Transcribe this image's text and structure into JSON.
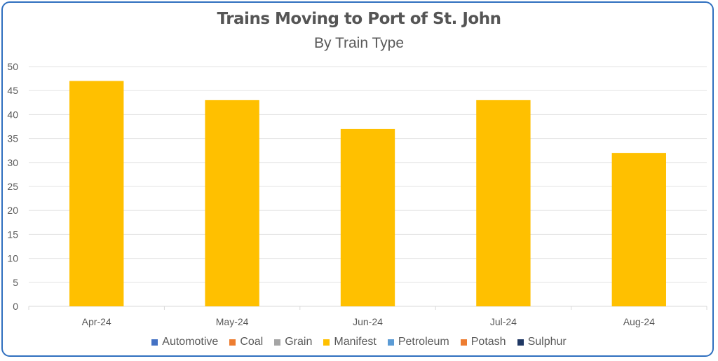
{
  "chart_data": {
    "type": "bar",
    "title": "Trains Moving to Port of St. John",
    "subtitle": "By Train Type",
    "categories": [
      "Apr-24",
      "May-24",
      "Jun-24",
      "Jul-24",
      "Aug-24"
    ],
    "series": [
      {
        "name": "Automotive",
        "color": "#4472c4",
        "values": [
          0,
          0,
          0,
          0,
          0
        ]
      },
      {
        "name": "Coal",
        "color": "#ed7d31",
        "values": [
          0,
          0,
          0,
          0,
          0
        ]
      },
      {
        "name": "Grain",
        "color": "#a5a5a5",
        "values": [
          0,
          0,
          0,
          0,
          0
        ]
      },
      {
        "name": "Manifest",
        "color": "#ffc000",
        "values": [
          47,
          43,
          37,
          43,
          32
        ]
      },
      {
        "name": "Petroleum",
        "color": "#5b9bd5",
        "values": [
          0,
          0,
          0,
          0,
          0
        ]
      },
      {
        "name": "Potash",
        "color": "#ed7d31",
        "values": [
          0,
          0,
          0,
          0,
          0
        ]
      },
      {
        "name": "Sulphur",
        "color": "#203864",
        "values": [
          0,
          0,
          0,
          0,
          0
        ]
      }
    ],
    "ylim": [
      0,
      50
    ],
    "yticks": [
      0,
      5,
      10,
      15,
      20,
      25,
      30,
      35,
      40,
      45,
      50
    ],
    "grid": true,
    "legend_position": "bottom"
  }
}
